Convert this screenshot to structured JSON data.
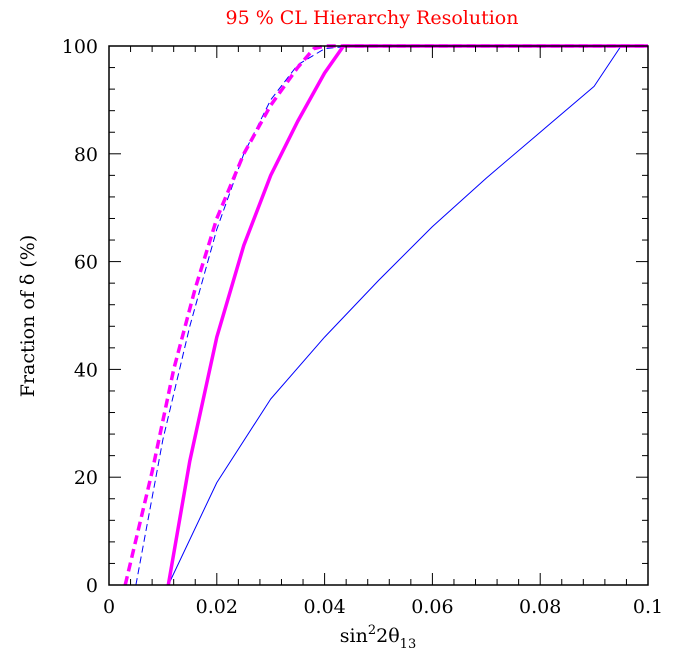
{
  "chart_data": {
    "type": "line",
    "title": "95 % CL Hierarchy Resolution",
    "xlabel": {
      "base": "sin",
      "sup": "2",
      "mid": "2θ",
      "sub": "13"
    },
    "ylabel": "Fraction of δ (%)",
    "xlim": [
      0,
      0.1
    ],
    "ylim": [
      0,
      100
    ],
    "xticks": [
      "0",
      "0.02",
      "0.04",
      "0.06",
      "0.08",
      "0.1"
    ],
    "yticks": [
      "0",
      "20",
      "40",
      "60",
      "80",
      "100"
    ],
    "grid": false,
    "series": [
      {
        "color": "#0000ff",
        "style": "solid",
        "width": "thin",
        "x": [
          0.011,
          0.02,
          0.03,
          0.04,
          0.05,
          0.06,
          0.07,
          0.08,
          0.09,
          0.095,
          0.1
        ],
        "y": [
          0,
          19,
          34.5,
          46,
          56.5,
          66.5,
          75.5,
          84,
          92.5,
          100,
          100
        ]
      },
      {
        "color": "#0000ff",
        "style": "dashed",
        "width": "thin",
        "x": [
          0.005,
          0.01,
          0.015,
          0.02,
          0.025,
          0.03,
          0.035,
          0.04,
          0.045,
          0.1
        ],
        "y": [
          0,
          27,
          48,
          66,
          80,
          90,
          96.5,
          99.5,
          100,
          100
        ]
      },
      {
        "color": "#ff00ff",
        "style": "solid",
        "width": "thick",
        "x": [
          0.011,
          0.015,
          0.02,
          0.025,
          0.03,
          0.035,
          0.04,
          0.0435,
          0.1
        ],
        "y": [
          0,
          23,
          46,
          63,
          76,
          86,
          95,
          100,
          100
        ]
      },
      {
        "color": "#ff00ff",
        "style": "dashed",
        "width": "thick",
        "x": [
          0.003,
          0.008,
          0.012,
          0.016,
          0.02,
          0.025,
          0.03,
          0.035,
          0.038,
          0.04,
          0.1
        ],
        "y": [
          0,
          21,
          40,
          55,
          68,
          80,
          89,
          96,
          99.5,
          100,
          100
        ]
      }
    ]
  }
}
